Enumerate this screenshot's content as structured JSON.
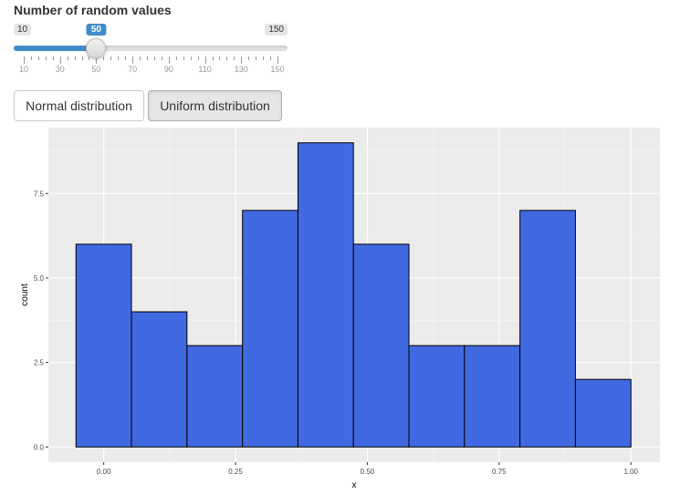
{
  "slider": {
    "label": "Number of random values",
    "min": 10,
    "max": 150,
    "value": 50,
    "min_label": "10",
    "max_label": "150",
    "value_label": "50",
    "tick_labels": [
      "10",
      "30",
      "50",
      "70",
      "90",
      "110",
      "130",
      "150"
    ]
  },
  "buttons": {
    "normal_label": "Normal distribution",
    "uniform_label": "Uniform distribution"
  },
  "chart_data": {
    "type": "bar",
    "xlabel": "x",
    "ylabel": "count",
    "bins": [
      {
        "x0": -0.0526,
        "x1": 0.0526,
        "count": 6
      },
      {
        "x0": 0.0526,
        "x1": 0.1579,
        "count": 4
      },
      {
        "x0": 0.1579,
        "x1": 0.2632,
        "count": 3
      },
      {
        "x0": 0.2632,
        "x1": 0.3684,
        "count": 7
      },
      {
        "x0": 0.3684,
        "x1": 0.4737,
        "count": 9
      },
      {
        "x0": 0.4737,
        "x1": 0.5789,
        "count": 6
      },
      {
        "x0": 0.5789,
        "x1": 0.6842,
        "count": 3
      },
      {
        "x0": 0.6842,
        "x1": 0.7895,
        "count": 3
      },
      {
        "x0": 0.7895,
        "x1": 0.8947,
        "count": 7
      },
      {
        "x0": 0.8947,
        "x1": 1.0,
        "count": 2
      }
    ],
    "xlim": [
      -0.105,
      1.055
    ],
    "ylim": [
      -0.45,
      9.45
    ],
    "x_ticks": [
      0.0,
      0.25,
      0.5,
      0.75,
      1.0
    ],
    "x_tick_labels": [
      "0.00",
      "0.25",
      "0.50",
      "0.75",
      "1.00"
    ],
    "y_ticks": [
      0.0,
      2.5,
      5.0,
      7.5
    ],
    "y_tick_labels": [
      "0.0",
      "2.5",
      "5.0",
      "7.5"
    ],
    "grid": true,
    "colors": {
      "fill": "#4169e1",
      "stroke": "#000000",
      "panel": "#ebebeb",
      "grid_major": "#ffffff"
    }
  }
}
